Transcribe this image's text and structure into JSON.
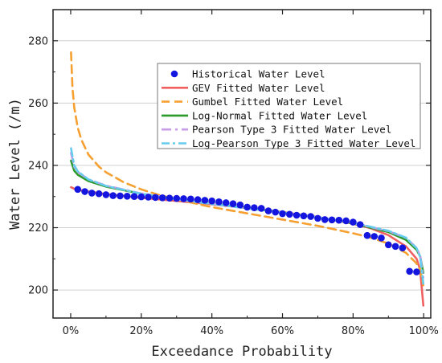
{
  "chart_data": {
    "type": "line",
    "xlabel": "Exceedance Probability",
    "ylabel": "Water Level (/m)",
    "xlim": [
      -5,
      102
    ],
    "ylim": [
      191,
      290
    ],
    "x_ticks": [
      0,
      20,
      40,
      60,
      80,
      100
    ],
    "x_tick_labels": [
      "0%",
      "20%",
      "40%",
      "60%",
      "80%",
      "100%"
    ],
    "y_ticks": [
      200,
      220,
      240,
      260,
      280
    ],
    "y_tick_labels": [
      "200",
      "220",
      "240",
      "260",
      "280"
    ],
    "grid": "horizontal",
    "legend_position": "top-right",
    "series": [
      {
        "name": "Historical Water Level",
        "kind": "scatter",
        "color": "#1515e0",
        "x": [
          2,
          4,
          6,
          8,
          10,
          12,
          14,
          16,
          18,
          20,
          22,
          24,
          26,
          28,
          30,
          32,
          34,
          36,
          38,
          40,
          42,
          44,
          46,
          48,
          50,
          52,
          54,
          56,
          58,
          60,
          62,
          64,
          66,
          68,
          70,
          72,
          74,
          76,
          78,
          80,
          82,
          84,
          86,
          88,
          90,
          92,
          94,
          96,
          98
        ],
        "y": [
          232.3,
          231.6,
          231.1,
          230.9,
          230.6,
          230.3,
          230.2,
          230.1,
          230.0,
          229.9,
          229.8,
          229.7,
          229.6,
          229.5,
          229.4,
          229.3,
          229.2,
          229.0,
          228.8,
          228.6,
          228.3,
          228.0,
          227.7,
          227.3,
          226.6,
          226.4,
          226.2,
          225.4,
          225.0,
          224.5,
          224.3,
          224.0,
          223.8,
          223.6,
          223.0,
          222.6,
          222.5,
          222.4,
          222.2,
          221.8,
          221.0,
          217.5,
          217.2,
          216.7,
          214.5,
          214.0,
          213.5,
          206.0,
          205.8
        ]
      },
      {
        "name": "GEV Fitted Water Level",
        "kind": "line",
        "color": "#f06060",
        "dash": "",
        "x": [
          0.1,
          1,
          3,
          5,
          10,
          20,
          30,
          40,
          50,
          60,
          70,
          80,
          85,
          90,
          95,
          98,
          99,
          99.9
        ],
        "y": [
          233.0,
          232.5,
          232.0,
          231.6,
          230.8,
          229.6,
          228.6,
          227.5,
          226.3,
          225.0,
          223.4,
          221.3,
          219.8,
          217.6,
          214.0,
          210.0,
          206.5,
          195.0
        ]
      },
      {
        "name": "Gumbel Fitted Water Level",
        "kind": "line",
        "color": "#f5a030",
        "dash": "10,6",
        "x": [
          0.1,
          0.5,
          1,
          2,
          3,
          5,
          8,
          10,
          15,
          20,
          25,
          30,
          40,
          50,
          60,
          70,
          80,
          85,
          90,
          95,
          98,
          99,
          99.9
        ],
        "y": [
          276.3,
          265.0,
          258.6,
          252.1,
          248.3,
          243.5,
          239.6,
          237.8,
          234.6,
          232.3,
          230.5,
          229.1,
          226.6,
          224.6,
          222.6,
          220.6,
          218.2,
          216.8,
          214.9,
          211.9,
          208.5,
          206.5,
          201.5
        ]
      },
      {
        "name": "Log-Normal Fitted Water Level",
        "kind": "line",
        "color": "#2a9a2a",
        "dash": "",
        "x": [
          0.1,
          1,
          2,
          5,
          10,
          20,
          30,
          40,
          50,
          60,
          70,
          80,
          90,
          95,
          98,
          99,
          99.9
        ],
        "y": [
          241.5,
          238.3,
          237.0,
          235.0,
          233.2,
          230.9,
          229.2,
          227.8,
          226.3,
          224.9,
          223.3,
          221.4,
          218.6,
          216.1,
          212.9,
          210.8,
          205.5
        ]
      },
      {
        "name": "Pearson Type 3 Fitted Water Level",
        "kind": "line",
        "color": "#c89be8",
        "dash": "12,5,3,5",
        "x": [
          0.1,
          1,
          2,
          5,
          10,
          20,
          30,
          40,
          50,
          60,
          70,
          80,
          90,
          95,
          98,
          99,
          99.9
        ],
        "y": [
          244.0,
          239.5,
          237.9,
          235.5,
          233.5,
          231.0,
          229.2,
          227.7,
          226.2,
          224.8,
          223.3,
          221.5,
          218.9,
          216.7,
          213.5,
          211.0,
          204.0
        ]
      },
      {
        "name": "Log-Pearson Type 3 Fitted Water Level",
        "kind": "line",
        "color": "#66ccee",
        "dash": "10,4,3,4",
        "x": [
          0.1,
          1,
          2,
          5,
          10,
          20,
          30,
          40,
          50,
          60,
          70,
          80,
          90,
          95,
          98,
          99,
          99.9
        ],
        "y": [
          245.5,
          240.0,
          238.1,
          235.5,
          233.4,
          230.9,
          229.1,
          227.6,
          226.2,
          224.8,
          223.3,
          221.6,
          219.0,
          216.8,
          213.4,
          210.7,
          202.0
        ]
      }
    ]
  }
}
